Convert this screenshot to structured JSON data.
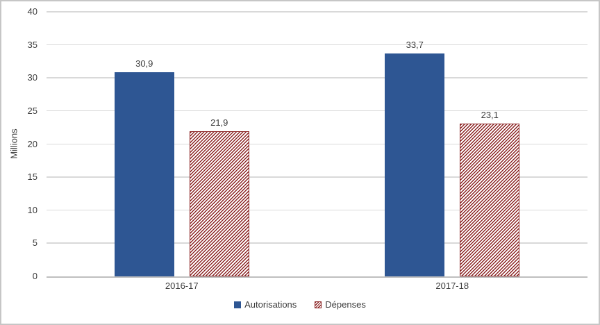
{
  "chart_data": {
    "type": "bar",
    "title": "",
    "xlabel": "",
    "ylabel": "Millions",
    "ylim": [
      0,
      40
    ],
    "yticks": [
      0,
      5,
      10,
      15,
      20,
      25,
      30,
      35,
      40
    ],
    "grid": true,
    "legend_position": "bottom",
    "categories": [
      "2016-17",
      "2017-18"
    ],
    "series": [
      {
        "name": "Autorisations",
        "values": [
          30.9,
          33.7
        ],
        "value_labels": [
          "30,9",
          "33,7"
        ],
        "color": "#2E5693",
        "fill": "solid"
      },
      {
        "name": "Dépenses",
        "values": [
          21.9,
          23.1
        ],
        "value_labels": [
          "21,9",
          "23,1"
        ],
        "color": "#8B2323",
        "fill": "diagonal-stripes-up"
      }
    ]
  },
  "colors": {
    "background": "#FFFFFF",
    "frame_border": "#C6C6C6",
    "gridline": "#D9D9D9",
    "axis_line": "#BFBFBF",
    "text": "#3D3D3D"
  }
}
